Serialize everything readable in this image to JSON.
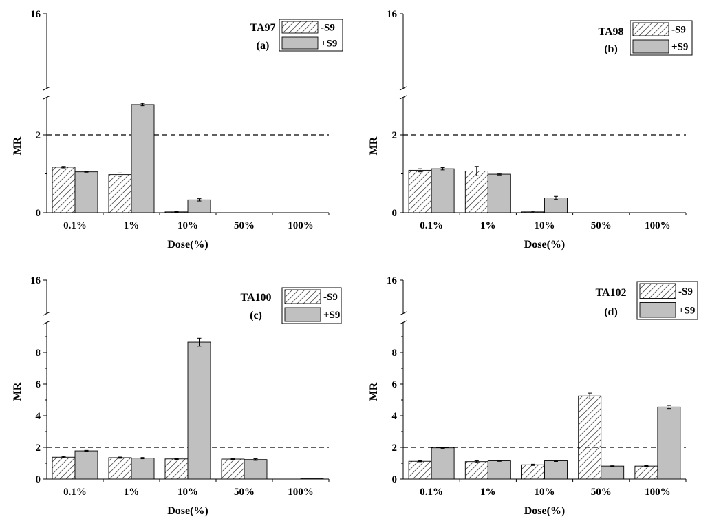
{
  "chart_data": [
    {
      "type": "bar",
      "panel": "(a)",
      "strain": "TA97",
      "categories": [
        "0.1%",
        "1%",
        "10%",
        "50%",
        "100%"
      ],
      "series": [
        {
          "name": "-S9",
          "pattern": "hatched",
          "values": [
            1.17,
            0.98,
            0.02,
            0,
            0
          ],
          "errors": [
            0.02,
            0.04,
            0.01,
            0,
            0
          ]
        },
        {
          "name": "+S9",
          "pattern": "solid",
          "values": [
            1.05,
            2.78,
            0.33,
            0,
            0
          ],
          "errors": [
            0.01,
            0.03,
            0.03,
            0,
            0
          ]
        }
      ],
      "xlabel": "Dose(%)",
      "ylabel": "MR",
      "yticks": [
        "0",
        "2",
        "16"
      ],
      "threshold": 2,
      "legend": [
        "-S9",
        "+S9"
      ]
    },
    {
      "type": "bar",
      "panel": "(b)",
      "strain": "TA98",
      "categories": [
        "0.1%",
        "1%",
        "10%",
        "50%",
        "100%"
      ],
      "series": [
        {
          "name": "-S9",
          "pattern": "hatched",
          "values": [
            1.09,
            1.07,
            0.02,
            0,
            0
          ],
          "errors": [
            0.04,
            0.12,
            0.02,
            0,
            0
          ]
        },
        {
          "name": "+S9",
          "pattern": "solid",
          "values": [
            1.13,
            0.99,
            0.38,
            0,
            0
          ],
          "errors": [
            0.03,
            0.02,
            0.04,
            0,
            0
          ]
        }
      ],
      "xlabel": "Dose(%)",
      "ylabel": "MR",
      "yticks": [
        "0",
        "2",
        "16"
      ],
      "threshold": 2,
      "legend": [
        "-S9",
        "+S9"
      ]
    },
    {
      "type": "bar",
      "panel": "(c)",
      "strain": "TA100",
      "categories": [
        "0.1%",
        "1%",
        "10%",
        "50%",
        "100%"
      ],
      "series": [
        {
          "name": "-S9",
          "pattern": "hatched",
          "values": [
            1.38,
            1.35,
            1.27,
            1.26,
            0
          ],
          "errors": [
            0.04,
            0.04,
            0.03,
            0.04,
            0
          ]
        },
        {
          "name": "+S9",
          "pattern": "solid",
          "values": [
            1.78,
            1.32,
            8.65,
            1.23,
            0.02
          ],
          "errors": [
            0.03,
            0.04,
            0.25,
            0.05,
            0
          ]
        }
      ],
      "xlabel": "Dose(%)",
      "ylabel": "MR",
      "yticks": [
        "0",
        "2",
        "4",
        "6",
        "8",
        "16"
      ],
      "threshold": 2,
      "legend": [
        "-S9",
        "+S9"
      ]
    },
    {
      "type": "bar",
      "panel": "(d)",
      "strain": "TA102",
      "categories": [
        "0.1%",
        "1%",
        "10%",
        "50%",
        "100%"
      ],
      "series": [
        {
          "name": "-S9",
          "pattern": "hatched",
          "values": [
            1.12,
            1.1,
            0.9,
            5.25,
            0.82
          ],
          "errors": [
            0.03,
            0.05,
            0.04,
            0.18,
            0.03
          ]
        },
        {
          "name": "+S9",
          "pattern": "solid",
          "values": [
            1.97,
            1.15,
            1.15,
            0.82,
            4.55
          ],
          "errors": [
            0.03,
            0.03,
            0.04,
            0.02,
            0.1
          ]
        }
      ],
      "xlabel": "Dose(%)",
      "ylabel": "MR",
      "yticks": [
        "0",
        "2",
        "4",
        "6",
        "8",
        "16"
      ],
      "threshold": 2,
      "legend": [
        "-S9",
        "+S9"
      ]
    }
  ],
  "colors": {
    "solid_fill": "#c0c0c0",
    "hatched_fill": "#ffffff",
    "stroke": "#000000",
    "hatch": "#555555",
    "threshold_line": "#000000"
  }
}
